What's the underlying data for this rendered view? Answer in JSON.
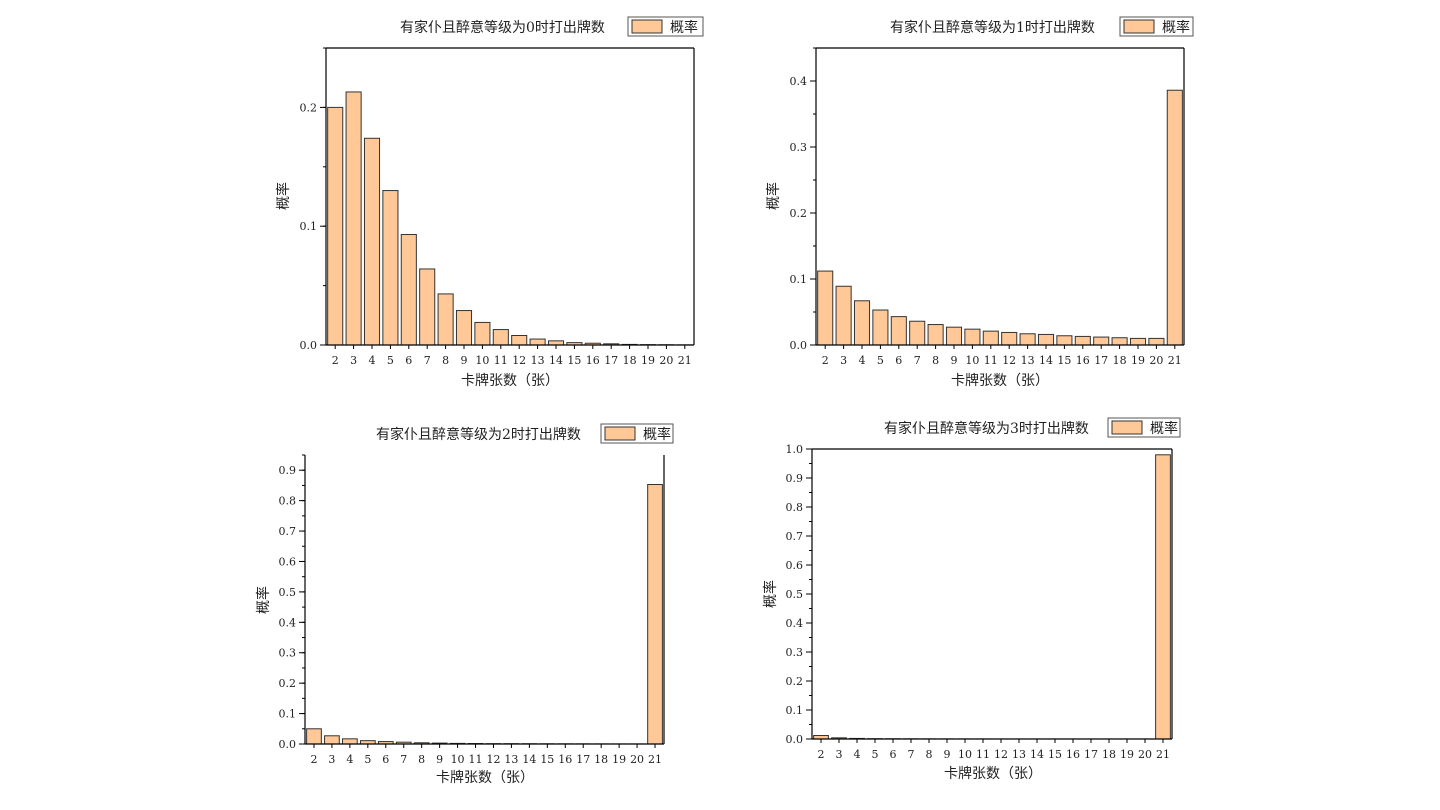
{
  "colors": {
    "bar_fill": "#FFC896",
    "bar_stroke": "#333333",
    "axis": "#000000",
    "background": "#FFFFFF"
  },
  "chart_data": [
    {
      "type": "bar",
      "title": "有家仆且醉意等级为0时打出牌数",
      "legend": [
        "概率"
      ],
      "legend_position": "top-right",
      "xlabel": "卡牌张数（张）",
      "ylabel": "概率",
      "categories": [
        "2",
        "3",
        "4",
        "5",
        "6",
        "7",
        "8",
        "9",
        "10",
        "11",
        "12",
        "13",
        "14",
        "15",
        "16",
        "17",
        "18",
        "19",
        "20",
        "21"
      ],
      "series": [
        {
          "name": "概率",
          "values": [
            0.2,
            0.213,
            0.174,
            0.13,
            0.093,
            0.064,
            0.043,
            0.029,
            0.019,
            0.013,
            0.008,
            0.005,
            0.0035,
            0.002,
            0.0015,
            0.001,
            0.0005,
            0.0003,
            0.0002,
            0.0001
          ]
        }
      ],
      "ylim": [
        0,
        0.25
      ],
      "yticks": [
        "0.0",
        "0.1",
        "0.2"
      ],
      "ytick_values": [
        0,
        0.1,
        0.2
      ],
      "minor_tick_step": 0.05,
      "grid": false
    },
    {
      "type": "bar",
      "title": "有家仆且醉意等级为1时打出牌数",
      "legend": [
        "概率"
      ],
      "legend_position": "top-right",
      "xlabel": "卡牌张数（张）",
      "ylabel": "概率",
      "categories": [
        "2",
        "3",
        "4",
        "5",
        "6",
        "7",
        "8",
        "9",
        "10",
        "11",
        "12",
        "13",
        "14",
        "15",
        "16",
        "17",
        "18",
        "19",
        "20",
        "21"
      ],
      "series": [
        {
          "name": "概率",
          "values": [
            0.112,
            0.089,
            0.067,
            0.053,
            0.043,
            0.036,
            0.031,
            0.027,
            0.024,
            0.021,
            0.019,
            0.017,
            0.016,
            0.014,
            0.013,
            0.012,
            0.011,
            0.01,
            0.01,
            0.386
          ]
        }
      ],
      "ylim": [
        0,
        0.45
      ],
      "yticks": [
        "0.0",
        "0.1",
        "0.2",
        "0.3",
        "0.4"
      ],
      "ytick_values": [
        0,
        0.1,
        0.2,
        0.3,
        0.4
      ],
      "minor_tick_step": 0.05,
      "grid": false
    },
    {
      "type": "bar",
      "title": "有家仆且醉意等级为2时打出牌数",
      "legend": [
        "概率"
      ],
      "legend_position": "top-right",
      "xlabel": "卡牌张数（张）",
      "ylabel": "概率",
      "categories": [
        "2",
        "3",
        "4",
        "5",
        "6",
        "7",
        "8",
        "9",
        "10",
        "11",
        "12",
        "13",
        "14",
        "15",
        "16",
        "17",
        "18",
        "19",
        "20",
        "21"
      ],
      "series": [
        {
          "name": "概率",
          "values": [
            0.05,
            0.027,
            0.017,
            0.011,
            0.008,
            0.006,
            0.004,
            0.003,
            0.002,
            0.0015,
            0.001,
            0.001,
            0.0008,
            0.0006,
            0.0005,
            0.0004,
            0.0003,
            0.0002,
            0.0002,
            0.853
          ]
        }
      ],
      "ylim": [
        0,
        0.95
      ],
      "yticks": [
        "0.0",
        "0.1",
        "0.2",
        "0.3",
        "0.4",
        "0.5",
        "0.6",
        "0.7",
        "0.8",
        "0.9"
      ],
      "ytick_values": [
        0,
        0.1,
        0.2,
        0.3,
        0.4,
        0.5,
        0.6,
        0.7,
        0.8,
        0.9
      ],
      "minor_tick_step": 0.05,
      "grid": false
    },
    {
      "type": "bar",
      "title": "有家仆且醉意等级为3时打出牌数",
      "legend": [
        "概率"
      ],
      "legend_position": "top-right",
      "xlabel": "卡牌张数（张）",
      "ylabel": "概率",
      "categories": [
        "2",
        "3",
        "4",
        "5",
        "6",
        "7",
        "8",
        "9",
        "10",
        "11",
        "12",
        "13",
        "14",
        "15",
        "16",
        "17",
        "18",
        "19",
        "20",
        "21"
      ],
      "series": [
        {
          "name": "概率",
          "values": [
            0.012,
            0.004,
            0.002,
            0.001,
            0.0008,
            0.0006,
            0.0004,
            0.0003,
            0.0002,
            0.0002,
            0.0001,
            0.0001,
            0.0001,
            0.0001,
            0.0001,
            0.0001,
            0.0001,
            0.0001,
            0.0001,
            0.98
          ]
        }
      ],
      "ylim": [
        0,
        1.0
      ],
      "yticks": [
        "0.0",
        "0.1",
        "0.2",
        "0.3",
        "0.4",
        "0.5",
        "0.6",
        "0.7",
        "0.8",
        "0.9",
        "1.0"
      ],
      "ytick_values": [
        0,
        0.1,
        0.2,
        0.3,
        0.4,
        0.5,
        0.6,
        0.7,
        0.8,
        0.9,
        1.0
      ],
      "minor_tick_step": 0.05,
      "grid": false
    }
  ]
}
